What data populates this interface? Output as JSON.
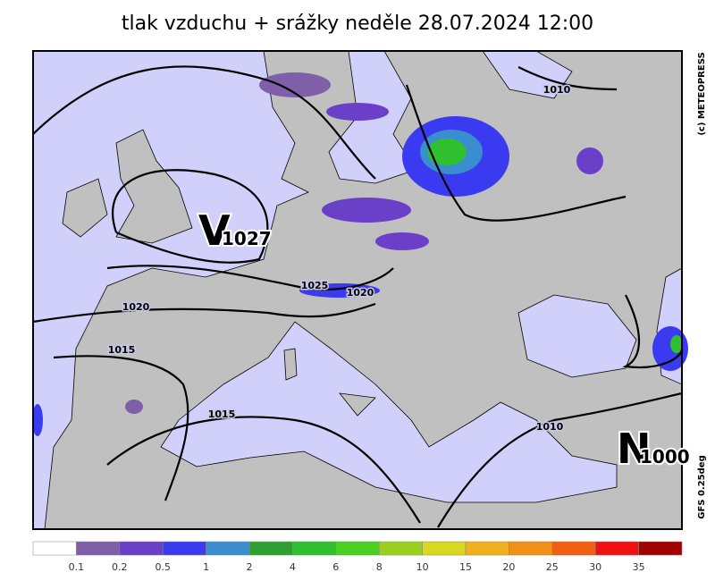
{
  "header": {
    "title": "tlak vzduchu + srážky  neděle 28.07.2024 12:00"
  },
  "map": {
    "isobar_labels": [
      "1010",
      "1025",
      "1020",
      "1020",
      "1015",
      "1015",
      "1010"
    ],
    "pressure_centers": [
      {
        "letter": "V",
        "value": "1027"
      },
      {
        "letter": "N",
        "value": "1000"
      }
    ],
    "copyright": "(c) METEOPRESS",
    "model": "GFS 0.25deg"
  },
  "legend": {
    "colors": [
      "#ffffff",
      "#7f5fa8",
      "#6a40c8",
      "#3a3af0",
      "#3a8ed0",
      "#2fa02f",
      "#2fc02f",
      "#4ad020",
      "#9ad020",
      "#d8d820",
      "#f0b020",
      "#f09018",
      "#f06010",
      "#f01010",
      "#a00000"
    ],
    "labels": [
      0.1,
      0.2,
      0.5,
      1,
      2,
      4,
      6,
      8,
      10,
      15,
      20,
      25,
      30,
      35
    ]
  }
}
